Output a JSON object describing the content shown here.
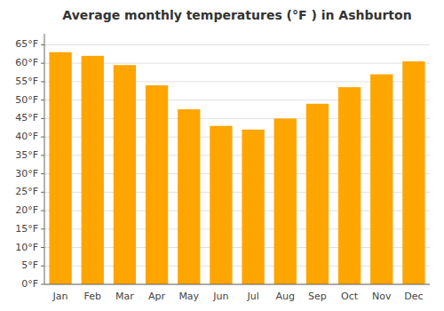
{
  "chart_data": {
    "type": "bar",
    "title": "Average monthly temperatures (°F ) in Ashburton",
    "categories": [
      "Jan",
      "Feb",
      "Mar",
      "Apr",
      "May",
      "Jun",
      "Jul",
      "Aug",
      "Sep",
      "Oct",
      "Nov",
      "Dec"
    ],
    "values": [
      63,
      62,
      59.5,
      54,
      47.5,
      43,
      42,
      45,
      49,
      53.5,
      57,
      60.5
    ],
    "color": "#FFA500",
    "ylim": [
      0,
      68
    ],
    "yticks": [
      {
        "value": 0,
        "label": "0°F"
      },
      {
        "value": 5,
        "label": "5°F"
      },
      {
        "value": 10,
        "label": "10°F"
      },
      {
        "value": 15,
        "label": "15°F"
      },
      {
        "value": 20,
        "label": "20°F"
      },
      {
        "value": 25,
        "label": "25°F"
      },
      {
        "value": 30,
        "label": "30°F"
      },
      {
        "value": 35,
        "label": "35°F"
      },
      {
        "value": 40,
        "label": "40°F"
      },
      {
        "value": 45,
        "label": "45°F"
      },
      {
        "value": 50,
        "label": "50°F"
      },
      {
        "value": 55,
        "label": "55°F"
      },
      {
        "value": 60,
        "label": "60°F"
      },
      {
        "value": 65,
        "label": "65°F"
      }
    ],
    "grid": true
  }
}
